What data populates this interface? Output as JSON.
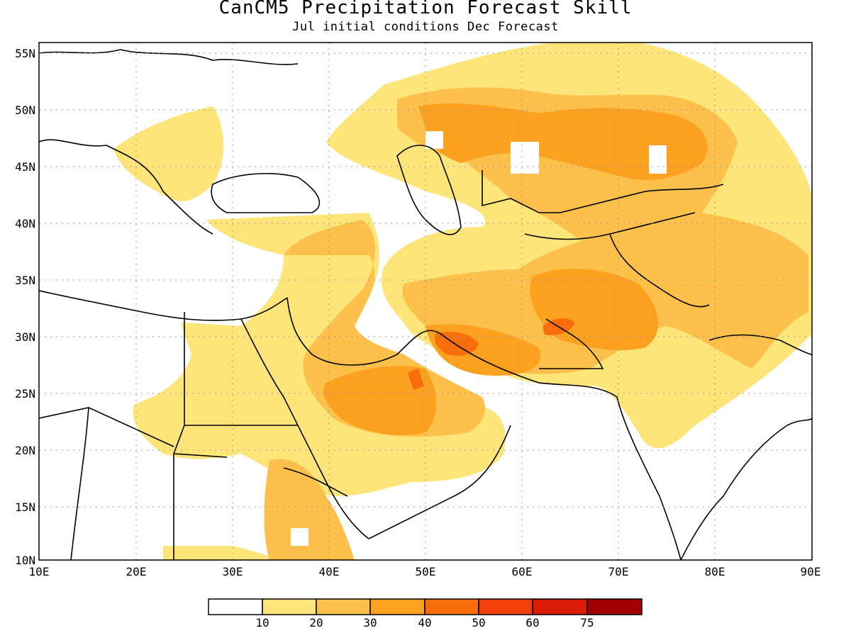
{
  "title": "CanCM5 Precipitation Forecast Skill",
  "subtitle": "Jul initial conditions   Dec Forecast",
  "lat_labels": [
    "55N",
    "50N",
    "45N",
    "40N",
    "35N",
    "30N",
    "25N",
    "20N",
    "15N",
    "10N"
  ],
  "lon_labels": [
    "10E",
    "20E",
    "30E",
    "40E",
    "50E",
    "60E",
    "70E",
    "80E",
    "90E"
  ],
  "colorbar": {
    "colors": [
      "#ffffff",
      "#fde57a",
      "#fcc04b",
      "#fca020",
      "#f86d0c",
      "#f3400b",
      "#dc1c08",
      "#a00000"
    ],
    "labels": [
      "10",
      "20",
      "30",
      "40",
      "50",
      "60",
      "75"
    ]
  }
}
